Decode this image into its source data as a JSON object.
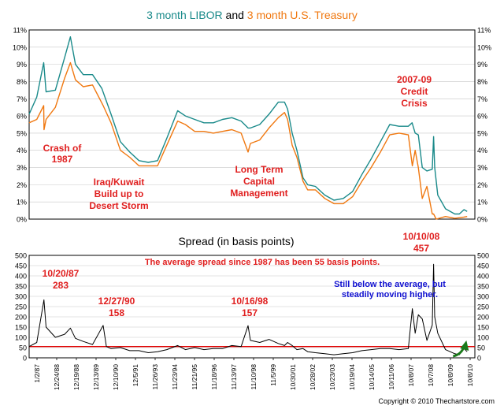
{
  "title": {
    "part1": "3 month LIBOR",
    "and": " and ",
    "part2": "3 month U.S. Treasury"
  },
  "colors": {
    "libor": "#1a8a8a",
    "treasury": "#f07810",
    "spread": "#000000",
    "average_line": "#e00000",
    "annotation_red": "#e02020",
    "annotation_blue": "#1010d0",
    "arrow": "#1a7a1a",
    "plot_bg": "#ffffff",
    "grid": "#c8c8c8"
  },
  "chart_data": [
    {
      "type": "line",
      "title": "3 month LIBOR and 3 month U.S. Treasury",
      "x_range": [
        "1987-01-02",
        "2010-12-31"
      ],
      "ylim": [
        0,
        11
      ],
      "grid": true,
      "yticks": [
        "0%",
        "1%",
        "2%",
        "3%",
        "4%",
        "5%",
        "6%",
        "7%",
        "8%",
        "9%",
        "10%",
        "11%"
      ],
      "series": [
        {
          "name": "3 month LIBOR",
          "points": [
            [
              "1987-01-02",
              6.1
            ],
            [
              "1987-06-01",
              7.1
            ],
            [
              "1987-10-15",
              9.1
            ],
            [
              "1987-12-01",
              7.4
            ],
            [
              "1988-06-01",
              7.5
            ],
            [
              "1988-12-01",
              9.4
            ],
            [
              "1989-03-24",
              10.6
            ],
            [
              "1989-07-01",
              9.0
            ],
            [
              "1989-12-01",
              8.4
            ],
            [
              "1990-06-01",
              8.4
            ],
            [
              "1990-12-01",
              7.6
            ],
            [
              "1991-06-01",
              6.1
            ],
            [
              "1991-12-01",
              4.5
            ],
            [
              "1992-06-01",
              3.9
            ],
            [
              "1992-12-01",
              3.4
            ],
            [
              "1993-06-01",
              3.3
            ],
            [
              "1993-12-01",
              3.4
            ],
            [
              "1994-06-01",
              4.7
            ],
            [
              "1994-12-31",
              6.3
            ],
            [
              "1995-06-01",
              6.0
            ],
            [
              "1995-12-01",
              5.8
            ],
            [
              "1996-06-01",
              5.6
            ],
            [
              "1996-12-01",
              5.6
            ],
            [
              "1997-06-01",
              5.8
            ],
            [
              "1997-12-01",
              5.9
            ],
            [
              "1998-06-01",
              5.7
            ],
            [
              "1998-10-16",
              5.3
            ],
            [
              "1998-12-01",
              5.3
            ],
            [
              "1999-06-01",
              5.5
            ],
            [
              "1999-12-01",
              6.1
            ],
            [
              "2000-06-01",
              6.8
            ],
            [
              "2000-10-01",
              6.8
            ],
            [
              "2000-12-01",
              6.4
            ],
            [
              "2001-03-01",
              5.0
            ],
            [
              "2001-06-01",
              4.0
            ],
            [
              "2001-10-01",
              2.4
            ],
            [
              "2001-12-31",
              2.0
            ],
            [
              "2002-06-01",
              1.9
            ],
            [
              "2002-12-01",
              1.4
            ],
            [
              "2003-06-01",
              1.1
            ],
            [
              "2003-12-01",
              1.2
            ],
            [
              "2004-06-01",
              1.6
            ],
            [
              "2004-12-01",
              2.6
            ],
            [
              "2005-06-01",
              3.5
            ],
            [
              "2005-12-01",
              4.5
            ],
            [
              "2006-06-01",
              5.5
            ],
            [
              "2006-12-01",
              5.4
            ],
            [
              "2007-06-01",
              5.4
            ],
            [
              "2007-08-15",
              5.6
            ],
            [
              "2007-10-15",
              5.0
            ],
            [
              "2007-12-15",
              4.9
            ],
            [
              "2008-03-01",
              3.0
            ],
            [
              "2008-06-01",
              2.8
            ],
            [
              "2008-09-15",
              2.9
            ],
            [
              "2008-10-10",
              4.8
            ],
            [
              "2008-11-01",
              3.0
            ],
            [
              "2009-01-01",
              1.4
            ],
            [
              "2009-06-01",
              0.6
            ],
            [
              "2009-12-01",
              0.3
            ],
            [
              "2010-03-01",
              0.3
            ],
            [
              "2010-06-01",
              0.55
            ],
            [
              "2010-08-01",
              0.45
            ]
          ]
        },
        {
          "name": "3 month U.S. Treasury",
          "points": [
            [
              "1987-01-02",
              5.6
            ],
            [
              "1987-06-01",
              5.8
            ],
            [
              "1987-10-15",
              6.6
            ],
            [
              "1987-10-21",
              5.2
            ],
            [
              "1987-12-01",
              5.8
            ],
            [
              "1988-06-01",
              6.5
            ],
            [
              "1988-12-01",
              8.2
            ],
            [
              "1989-03-24",
              9.1
            ],
            [
              "1989-07-01",
              8.1
            ],
            [
              "1989-12-01",
              7.7
            ],
            [
              "1990-06-01",
              7.8
            ],
            [
              "1990-12-27",
              6.6
            ],
            [
              "1991-06-01",
              5.6
            ],
            [
              "1991-12-01",
              4.0
            ],
            [
              "1992-06-01",
              3.6
            ],
            [
              "1992-12-01",
              3.1
            ],
            [
              "1993-06-01",
              3.1
            ],
            [
              "1993-12-01",
              3.1
            ],
            [
              "1994-06-01",
              4.3
            ],
            [
              "1994-12-31",
              5.7
            ],
            [
              "1995-06-01",
              5.5
            ],
            [
              "1995-12-01",
              5.1
            ],
            [
              "1996-06-01",
              5.1
            ],
            [
              "1996-12-01",
              5.0
            ],
            [
              "1997-06-01",
              5.1
            ],
            [
              "1997-12-01",
              5.2
            ],
            [
              "1998-06-01",
              5.0
            ],
            [
              "1998-10-16",
              3.9
            ],
            [
              "1998-12-01",
              4.4
            ],
            [
              "1999-06-01",
              4.6
            ],
            [
              "1999-12-01",
              5.3
            ],
            [
              "2000-06-01",
              5.9
            ],
            [
              "2000-10-01",
              6.2
            ],
            [
              "2000-12-01",
              5.8
            ],
            [
              "2001-03-01",
              4.3
            ],
            [
              "2001-06-01",
              3.6
            ],
            [
              "2001-10-01",
              2.2
            ],
            [
              "2001-12-31",
              1.7
            ],
            [
              "2002-06-01",
              1.7
            ],
            [
              "2002-12-01",
              1.2
            ],
            [
              "2003-06-01",
              0.9
            ],
            [
              "2003-12-01",
              0.9
            ],
            [
              "2004-06-01",
              1.3
            ],
            [
              "2004-12-01",
              2.2
            ],
            [
              "2005-06-01",
              3.0
            ],
            [
              "2005-12-01",
              3.9
            ],
            [
              "2006-06-01",
              4.9
            ],
            [
              "2006-12-01",
              5.0
            ],
            [
              "2007-06-01",
              4.9
            ],
            [
              "2007-08-20",
              3.1
            ],
            [
              "2007-10-15",
              4.0
            ],
            [
              "2007-12-15",
              3.0
            ],
            [
              "2008-03-01",
              1.2
            ],
            [
              "2008-06-01",
              1.9
            ],
            [
              "2008-09-15",
              0.3
            ],
            [
              "2008-10-10",
              0.3
            ],
            [
              "2008-12-01",
              0.0
            ],
            [
              "2009-06-01",
              0.15
            ],
            [
              "2009-12-01",
              0.05
            ],
            [
              "2010-06-01",
              0.12
            ],
            [
              "2010-08-01",
              0.15
            ]
          ]
        }
      ],
      "annotations": [
        {
          "text": "Crash of 1987",
          "lines": [
            "Crash of",
            "1987"
          ]
        },
        {
          "text": "Iraq/Kuwait Build up to Desert Storm",
          "lines": [
            "Iraq/Kuwait",
            "Build up to",
            "Desert Storm"
          ]
        },
        {
          "text": "Long Term Capital Management",
          "lines": [
            "Long Term",
            "Capital",
            "Management"
          ]
        },
        {
          "text": "2007-09 Credit Crisis",
          "lines": [
            "2007-09",
            "Credit",
            "Crisis"
          ]
        }
      ]
    },
    {
      "type": "line",
      "title": "Spread (in basis points)",
      "x_range": [
        "1987-01-02",
        "2010-12-31"
      ],
      "ylim": [
        0,
        500
      ],
      "grid": true,
      "yticks": [
        "0",
        "50",
        "100",
        "150",
        "200",
        "250",
        "300",
        "350",
        "400",
        "450",
        "500"
      ],
      "average_line": {
        "value": 55
      },
      "series": [
        {
          "name": "Spread",
          "points": [
            [
              "1987-01-02",
              55
            ],
            [
              "1987-06-01",
              75
            ],
            [
              "1987-10-20",
              283
            ],
            [
              "1987-12-01",
              150
            ],
            [
              "1988-06-01",
              100
            ],
            [
              "1988-12-01",
              115
            ],
            [
              "1989-03-24",
              145
            ],
            [
              "1989-07-01",
              95
            ],
            [
              "1989-12-01",
              80
            ],
            [
              "1990-06-01",
              65
            ],
            [
              "1990-12-27",
              158
            ],
            [
              "1991-03-01",
              55
            ],
            [
              "1991-06-01",
              45
            ],
            [
              "1991-12-01",
              50
            ],
            [
              "1992-06-01",
              35
            ],
            [
              "1992-12-01",
              35
            ],
            [
              "1993-06-01",
              25
            ],
            [
              "1993-12-01",
              30
            ],
            [
              "1994-06-01",
              40
            ],
            [
              "1994-12-31",
              60
            ],
            [
              "1995-06-01",
              40
            ],
            [
              "1995-12-01",
              50
            ],
            [
              "1996-06-01",
              40
            ],
            [
              "1996-12-01",
              45
            ],
            [
              "1997-06-01",
              45
            ],
            [
              "1997-12-01",
              60
            ],
            [
              "1998-06-01",
              55
            ],
            [
              "1998-10-16",
              157
            ],
            [
              "1998-12-01",
              85
            ],
            [
              "1999-06-01",
              75
            ],
            [
              "1999-12-01",
              90
            ],
            [
              "2000-06-01",
              70
            ],
            [
              "2000-10-01",
              60
            ],
            [
              "2000-12-01",
              75
            ],
            [
              "2001-03-01",
              60
            ],
            [
              "2001-06-01",
              40
            ],
            [
              "2001-10-01",
              45
            ],
            [
              "2001-12-31",
              30
            ],
            [
              "2002-06-01",
              25
            ],
            [
              "2002-12-01",
              20
            ],
            [
              "2003-06-01",
              15
            ],
            [
              "2003-12-01",
              20
            ],
            [
              "2004-06-01",
              25
            ],
            [
              "2004-12-01",
              35
            ],
            [
              "2005-06-01",
              40
            ],
            [
              "2005-12-01",
              45
            ],
            [
              "2006-06-01",
              45
            ],
            [
              "2006-12-01",
              40
            ],
            [
              "2007-06-01",
              45
            ],
            [
              "2007-08-20",
              240
            ],
            [
              "2007-10-15",
              120
            ],
            [
              "2007-12-15",
              210
            ],
            [
              "2008-03-01",
              190
            ],
            [
              "2008-06-01",
              85
            ],
            [
              "2008-09-15",
              160
            ],
            [
              "2008-10-10",
              457
            ],
            [
              "2008-11-01",
              200
            ],
            [
              "2009-01-01",
              120
            ],
            [
              "2009-06-01",
              40
            ],
            [
              "2009-12-01",
              20
            ],
            [
              "2010-03-01",
              15
            ],
            [
              "2010-06-01",
              45
            ],
            [
              "2010-08-01",
              30
            ]
          ]
        }
      ],
      "annotations": [
        {
          "text": "The average spread since 1987 has been 55 basis points.",
          "lines": [
            "The average spread since 1987 has been 55 basis points."
          ]
        },
        {
          "text": "10/20/87 283",
          "lines": [
            "10/20/87",
            "283"
          ]
        },
        {
          "text": "12/27/90 158",
          "lines": [
            "12/27/90",
            "158"
          ]
        },
        {
          "text": "10/16/98 157",
          "lines": [
            "10/16/98",
            "157"
          ]
        },
        {
          "text": "10/10/08 457",
          "lines": [
            "10/10/08",
            "457"
          ]
        },
        {
          "text": "Still below the average, but steadily moving higher.",
          "lines": [
            "Still below the average, but",
            "steadily moving higher."
          ]
        }
      ],
      "xticks": [
        "1/2/87",
        "12/24/88",
        "12/19/88",
        "12/13/89",
        "12/10/90",
        "12/5/91",
        "11/26/93",
        "11/23/94",
        "11/21/95",
        "11/18/96",
        "11/13/97",
        "11/10/98",
        "11/5/99",
        "10/30/01",
        "10/28/02",
        "10/23/03",
        "10/19/04",
        "10/14/05",
        "10/11/06",
        "10/8/07",
        "10/7/08",
        "10/8/09",
        "10/8/10"
      ]
    }
  ],
  "copyright": "Copyright © 2010 Thechartstore.com"
}
